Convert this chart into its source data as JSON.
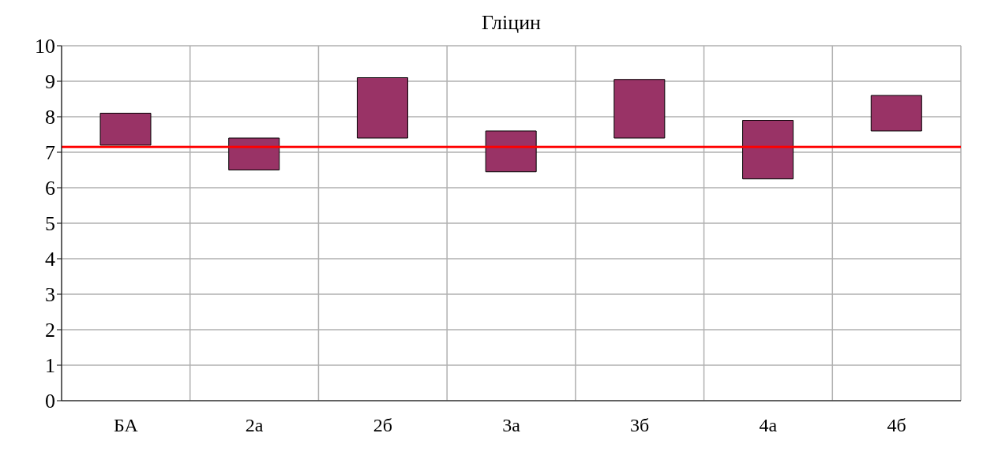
{
  "chart_data": {
    "type": "bar",
    "title": "Гліцин",
    "categories": [
      "БА",
      "2а",
      "2б",
      "3а",
      "3б",
      "4а",
      "4б"
    ],
    "base": [
      7.2,
      6.5,
      7.4,
      6.45,
      7.4,
      6.25,
      7.6
    ],
    "values": [
      0.9,
      0.9,
      1.7,
      1.15,
      1.65,
      1.65,
      1.0
    ],
    "color": "#993366",
    "ylim": [
      0,
      10
    ],
    "yticks": [
      0,
      1,
      2,
      3,
      4,
      5,
      6,
      7,
      8,
      9,
      10
    ],
    "grid": true,
    "legend": false,
    "ref_lines": [
      {
        "axis": "y",
        "value": 7.15,
        "color": "#ff0000"
      }
    ]
  }
}
